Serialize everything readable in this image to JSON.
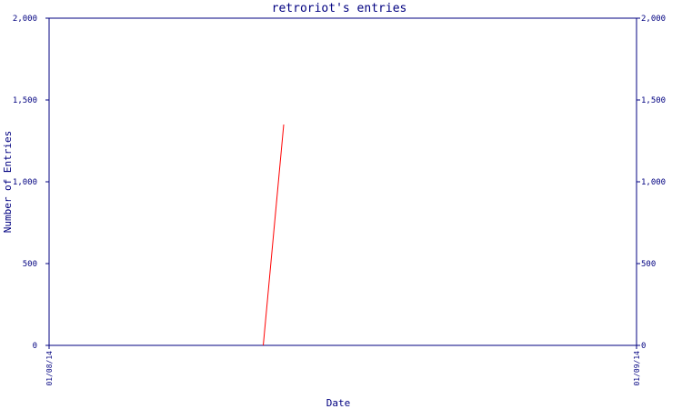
{
  "colors": {
    "axis": "#000080",
    "text": "#000080",
    "series": "#ff0000",
    "background": "#ffffff"
  },
  "chart_data": {
    "type": "line",
    "title": "retroriot's entries",
    "xlabel": "Date",
    "ylabel": "Number of Entries",
    "ylim": [
      0,
      2000
    ],
    "yticks": [
      0,
      500,
      1000,
      1500,
      2000
    ],
    "ytick_labels": [
      "0",
      "500",
      "1,000",
      "1,500",
      "2,000"
    ],
    "xticks": [
      "01/08/14",
      "01/09/14"
    ],
    "grid": false,
    "series": [
      {
        "color": "#ff0000",
        "points": [
          {
            "x": "2014-01-08 08:45",
            "y": 0
          },
          {
            "x": "2014-01-08 09:35",
            "y": 1350
          }
        ]
      }
    ]
  }
}
